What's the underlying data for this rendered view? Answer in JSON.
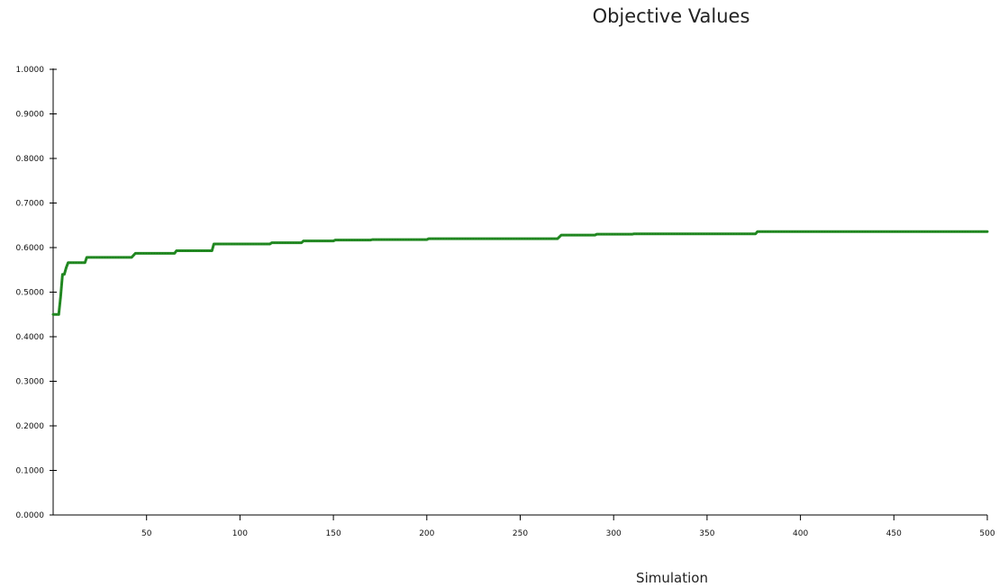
{
  "chart_data": {
    "type": "line",
    "title": "Objective Values",
    "xlabel": "Simulation",
    "ylabel": "",
    "xlim": [
      0,
      500
    ],
    "ylim": [
      0,
      1
    ],
    "x_ticks": [
      50,
      100,
      150,
      200,
      250,
      300,
      350,
      400,
      450,
      500
    ],
    "x_tick_labels": [
      "50",
      "100",
      "150",
      "200",
      "250",
      "300",
      "350",
      "400",
      "450",
      "500"
    ],
    "y_ticks": [
      0,
      0.1,
      0.2,
      0.3,
      0.4,
      0.5,
      0.6,
      0.7,
      0.8,
      0.9,
      1.0
    ],
    "y_tick_labels": [
      "0.0000",
      "0.1000",
      "0.2000",
      "0.3000",
      "0.4000",
      "0.5000",
      "0.6000",
      "0.7000",
      "0.8000",
      "0.9000",
      "1.0000"
    ],
    "grid": false,
    "line_color": "#228b22",
    "series": [
      {
        "step": true,
        "x": [
          0,
          3,
          4,
          5,
          6,
          7,
          8,
          17,
          18,
          42,
          44,
          65,
          66,
          85,
          86,
          116,
          117,
          133,
          134,
          150,
          151,
          170,
          171,
          200,
          201,
          270,
          272,
          290,
          291,
          310,
          311,
          376,
          377,
          500
        ],
        "y": [
          0.45,
          0.45,
          0.49,
          0.54,
          0.54,
          0.555,
          0.566,
          0.566,
          0.578,
          0.578,
          0.587,
          0.587,
          0.593,
          0.593,
          0.608,
          0.608,
          0.611,
          0.611,
          0.615,
          0.615,
          0.617,
          0.617,
          0.618,
          0.618,
          0.62,
          0.62,
          0.628,
          0.628,
          0.63,
          0.63,
          0.631,
          0.631,
          0.636,
          0.636
        ]
      }
    ]
  }
}
